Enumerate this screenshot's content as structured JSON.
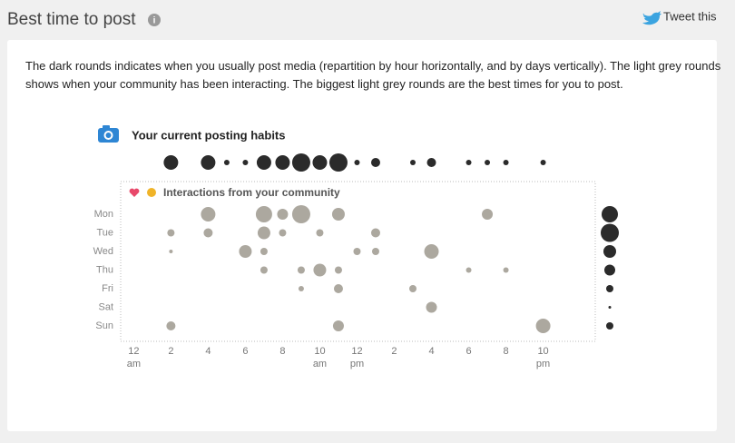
{
  "header": {
    "title": "Best time to post",
    "tweet": "Tweet this"
  },
  "description": "The dark rounds indicates when you usually post media (repartition by hour horizontally, and by days vertically). The light grey rounds shows when your community has been interacting. The biggest light grey rounds are the best times for you to post.",
  "chart_data": {
    "type": "bubble",
    "posting_title": "Your current posting habits",
    "interactions_title": "Interactions from your community",
    "categories": [
      "Mon",
      "Tue",
      "Wed",
      "Thu",
      "Fri",
      "Sat",
      "Sun"
    ],
    "xlim": [
      -0.7,
      24.8
    ],
    "xticks": [
      {
        "value": 0,
        "label": "12\nam"
      },
      2,
      4,
      6,
      8,
      {
        "value": 10,
        "label": "10\nam"
      },
      {
        "value": 12,
        "label": "12\npm"
      },
      {
        "value": 14,
        "label": "2"
      },
      {
        "value": 16,
        "label": "4"
      },
      {
        "value": 18,
        "label": "6"
      },
      {
        "value": 20,
        "label": "8"
      },
      {
        "value": 22,
        "label": "10\npm"
      }
    ],
    "posting_by_hour": {
      "color": "#2b2b2b",
      "x": [
        2,
        4,
        5,
        6,
        7,
        8,
        9,
        10,
        11,
        12,
        13,
        15,
        16,
        18,
        19,
        20,
        22
      ],
      "sizes": [
        8,
        8,
        3,
        3,
        8,
        8,
        10,
        8,
        10,
        3,
        5,
        3,
        5,
        3,
        3,
        3,
        3
      ]
    },
    "posting_by_day": {
      "color": "#2b2b2b",
      "sizes": [
        9,
        10,
        7,
        6,
        4,
        1.5,
        4
      ]
    },
    "interactions": {
      "color": "#aca89f",
      "days": [
        {
          "x": [
            4,
            7,
            8,
            9,
            11,
            19
          ],
          "sizes": [
            8,
            9,
            6,
            10,
            7,
            6
          ]
        },
        {
          "x": [
            2,
            4,
            7,
            8,
            10,
            13
          ],
          "sizes": [
            4,
            5,
            7,
            4,
            4,
            5
          ]
        },
        {
          "x": [
            2,
            6,
            7,
            12,
            13,
            16
          ],
          "sizes": [
            2,
            7,
            4,
            4,
            4,
            8
          ]
        },
        {
          "x": [
            7,
            9,
            10,
            11,
            18,
            20
          ],
          "sizes": [
            4,
            4,
            7,
            4,
            3,
            3
          ]
        },
        {
          "x": [
            9,
            11,
            15
          ],
          "sizes": [
            3,
            5,
            4
          ]
        },
        {
          "x": [
            16
          ],
          "sizes": [
            6
          ]
        },
        {
          "x": [
            2,
            11,
            22
          ],
          "sizes": [
            5,
            6,
            8
          ]
        }
      ]
    }
  }
}
